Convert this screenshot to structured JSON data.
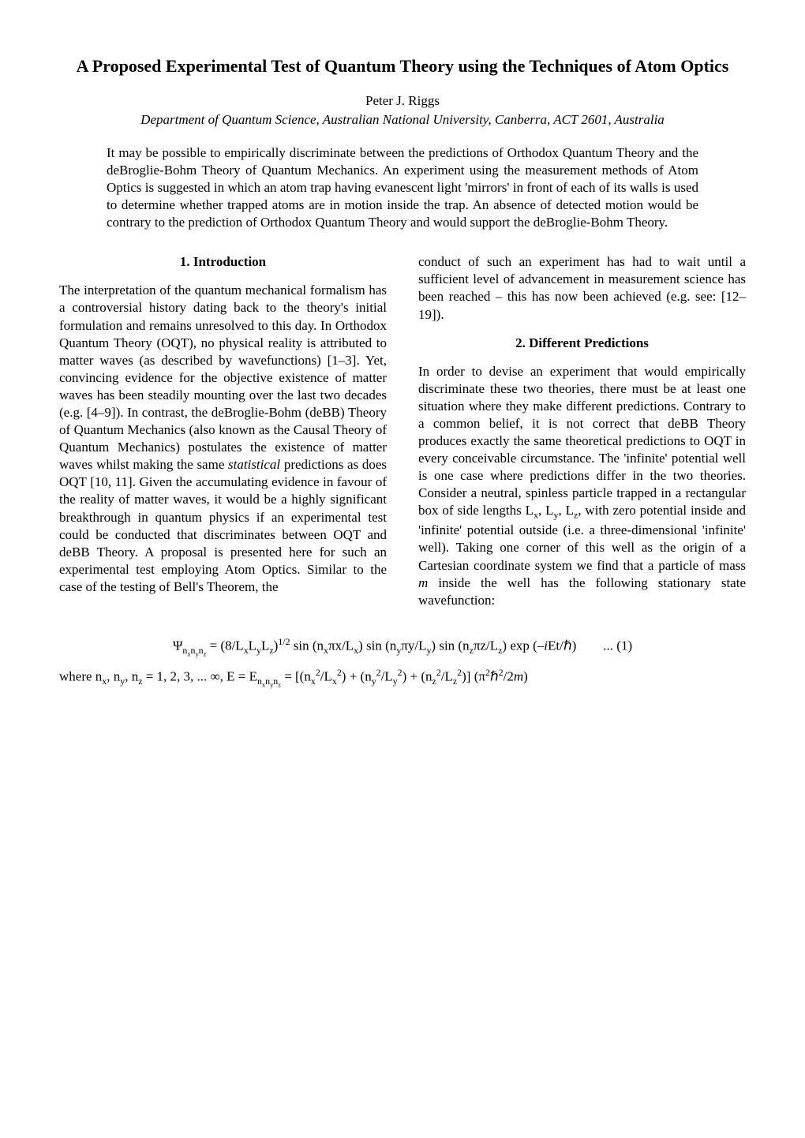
{
  "title": "A Proposed Experimental Test of Quantum Theory using the Techniques of Atom Optics",
  "author": "Peter J. Riggs",
  "affiliation": "Department of Quantum Science, Australian National University, Canberra, ACT 2601, Australia",
  "abstract": "It may be possible to empirically discriminate between the predictions of Orthodox Quantum Theory and the deBroglie-Bohm Theory of Quantum Mechanics. An experiment using the measurement methods of Atom Optics is suggested in which an atom trap having evanescent light 'mirrors' in front of each of its walls is used to determine whether trapped atoms are in motion inside the trap. An absence of detected motion would be contrary to the prediction of Orthodox Quantum Theory and would support the deBroglie-Bohm Theory.",
  "section1": {
    "heading": "1. Introduction",
    "body_part1": "The interpretation of the quantum mechanical formalism has a controversial history dating back to the theory's initial formulation and remains unresolved to this day. In Orthodox Quantum Theory (OQT), no physical reality is attributed to matter waves (as described by wavefunctions) [1–3]. Yet, convincing evidence for the objective existence of matter waves has been steadily mounting over the last two decades (e.g. [4–9]). In contrast, the deBroglie-Bohm (deBB) Theory of Quantum Mechanics (also known as the Causal Theory of Quantum Mechanics) postulates the existence of matter waves whilst making the same ",
    "body_emph": "statistical",
    "body_part2": " predictions as does OQT [10, 11]. Given the accumulating evidence in favour of the reality of matter waves, it would be a highly significant breakthrough in quantum physics if an experimental test could be conducted that discriminates between OQT and deBB Theory. A proposal is presented here for such an experimental test employing Atom Optics. Similar to the case of the testing of Bell's Theorem, the ",
    "body_part3": "conduct of such an experiment has had to wait until a sufficient level of advancement in measurement science has been reached – this has now been achieved (e.g. see: [12–19])."
  },
  "section2": {
    "heading": "2. Different Predictions",
    "body_part1": "In order to devise an experiment that would empirically discriminate these two theories, there must be at least one situation where they make different predictions. Contrary to a common belief, it is not correct that deBB Theory produces exactly the same theoretical predictions to OQT in every conceivable circumstance. The 'infinite' potential well is one case where predictions differ in the two theories. Consider a neutral, spinless particle trapped in a rectangular box of side lengths L",
    "body_part2": ", L",
    "body_part3": ", L",
    "body_part4": ", with zero potential inside and 'infinite' potential outside (i.e. a three-dimensional 'infinite' well). Taking one corner of this well as the origin of a Cartesian coordinate system we find that a particle of mass ",
    "body_mass": "m",
    "body_part5": " inside the well has the following stationary state wavefunction:"
  },
  "eq1_psi": "Ψ",
  "eq1_sub1": "n",
  "eq1_subx": "x",
  "eq1_suby": "y",
  "eq1_subz": "z",
  "eq1_body": " = (8/L",
  "eq1_lx": "x",
  "eq1_body2": "L",
  "eq1_ly": "y",
  "eq1_body3": "L",
  "eq1_lz": "z",
  "eq1_body4": ")",
  "eq1_half": "1/2",
  "eq1_body5": " sin (n",
  "eq1_body6": "πx/L",
  "eq1_body7": ") sin (n",
  "eq1_body8": "πy/L",
  "eq1_body9": ") sin (n",
  "eq1_body10": "πz/L",
  "eq1_body11": ") exp (–",
  "eq1_i": "i",
  "eq1_body12": "Et/ℏ)",
  "eq1_num": "... (1)",
  "eq2_where": "where n",
  "eq2_body1": ", n",
  "eq2_body2": ", n",
  "eq2_body3": " = 1, 2, 3, ... ∞, E = E",
  "eq2_body4": " = [(n",
  "eq2_sq": "2",
  "eq2_body5": "/L",
  "eq2_body6": ") + (n",
  "eq2_body7": "/L",
  "eq2_body8": ") + (n",
  "eq2_body9": "/L",
  "eq2_body10": ")] (π",
  "eq2_body11": "ℏ",
  "eq2_body12": "/2",
  "eq2_m": "m",
  "eq2_body13": ")",
  "colors": {
    "text": "#000000",
    "background": "#ffffff"
  },
  "typography": {
    "font_family": "Times New Roman",
    "title_fontsize": 22,
    "body_fontsize": 17,
    "heading_fontsize": 17
  }
}
